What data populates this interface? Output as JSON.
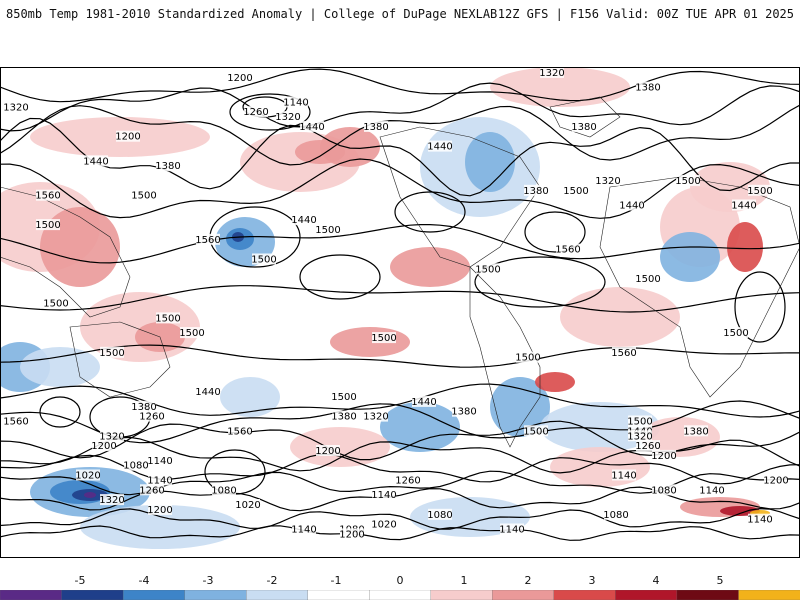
{
  "header": {
    "title": "850mb Temp 1981-2010 Standardized Anomaly | College of DuPage NEXLAB",
    "valid": "12Z GFS | F156 Valid: 00Z TUE APR 01 2025"
  },
  "colors": {
    "neg5": "#5a2a86",
    "neg4": "#1f3f8a",
    "neg3": "#3d84c8",
    "neg2": "#7fb2e0",
    "neg1": "#c9ddf2",
    "zero": "#ffffff",
    "pos1": "#f6cccc",
    "pos2": "#ea9999",
    "pos3": "#d94a4a",
    "pos4": "#b0162a",
    "pos5": "#6e0a14",
    "pos6": "#f2b21a",
    "contour": "#000000",
    "coast": "#222222"
  },
  "colorbar": {
    "ticks": [
      "-5",
      "-4",
      "-3",
      "-2",
      "-1",
      "0",
      "1",
      "2",
      "3",
      "4",
      "5"
    ]
  },
  "map": {
    "contour_labels": [
      {
        "text": "1200",
        "lon": 0.3,
        "lat": 0.02
      },
      {
        "text": "1320",
        "lon": 0.69,
        "lat": 0.01
      },
      {
        "text": "1380",
        "lon": 0.81,
        "lat": 0.04
      },
      {
        "text": "1320",
        "lon": 0.02,
        "lat": 0.08
      },
      {
        "text": "1140",
        "lon": 0.37,
        "lat": 0.07
      },
      {
        "text": "1260",
        "lon": 0.32,
        "lat": 0.09
      },
      {
        "text": "1320",
        "lon": 0.36,
        "lat": 0.1
      },
      {
        "text": "1440",
        "lon": 0.39,
        "lat": 0.12
      },
      {
        "text": "1380",
        "lon": 0.47,
        "lat": 0.12
      },
      {
        "text": "1380",
        "lon": 0.73,
        "lat": 0.12
      },
      {
        "text": "1200",
        "lon": 0.16,
        "lat": 0.14
      },
      {
        "text": "1440",
        "lon": 0.55,
        "lat": 0.16
      },
      {
        "text": "1440",
        "lon": 0.12,
        "lat": 0.19
      },
      {
        "text": "1380",
        "lon": 0.21,
        "lat": 0.2
      },
      {
        "text": "1320",
        "lon": 0.76,
        "lat": 0.23
      },
      {
        "text": "1380",
        "lon": 0.67,
        "lat": 0.25
      },
      {
        "text": "1500",
        "lon": 0.72,
        "lat": 0.25
      },
      {
        "text": "1500",
        "lon": 0.86,
        "lat": 0.23
      },
      {
        "text": "1500",
        "lon": 0.95,
        "lat": 0.25
      },
      {
        "text": "1440",
        "lon": 0.93,
        "lat": 0.28
      },
      {
        "text": "1560",
        "lon": 0.06,
        "lat": 0.26
      },
      {
        "text": "1500",
        "lon": 0.18,
        "lat": 0.26
      },
      {
        "text": "1440",
        "lon": 0.79,
        "lat": 0.28
      },
      {
        "text": "1500",
        "lon": 0.06,
        "lat": 0.32
      },
      {
        "text": "1440",
        "lon": 0.38,
        "lat": 0.31
      },
      {
        "text": "1500",
        "lon": 0.41,
        "lat": 0.33
      },
      {
        "text": "1560",
        "lon": 0.26,
        "lat": 0.35
      },
      {
        "text": "1560",
        "lon": 0.71,
        "lat": 0.37
      },
      {
        "text": "1500",
        "lon": 0.33,
        "lat": 0.39
      },
      {
        "text": "1500",
        "lon": 0.61,
        "lat": 0.41
      },
      {
        "text": "1500",
        "lon": 0.81,
        "lat": 0.43
      },
      {
        "text": "1500",
        "lon": 0.07,
        "lat": 0.48
      },
      {
        "text": "1500",
        "lon": 0.21,
        "lat": 0.51
      },
      {
        "text": "1500",
        "lon": 0.24,
        "lat": 0.54
      },
      {
        "text": "1500",
        "lon": 0.48,
        "lat": 0.55
      },
      {
        "text": "1500",
        "lon": 0.92,
        "lat": 0.54
      },
      {
        "text": "1500",
        "lon": 0.14,
        "lat": 0.58
      },
      {
        "text": "1500",
        "lon": 0.66,
        "lat": 0.59
      },
      {
        "text": "1560",
        "lon": 0.78,
        "lat": 0.58
      },
      {
        "text": "1500",
        "lon": 0.43,
        "lat": 0.67
      },
      {
        "text": "1440",
        "lon": 0.26,
        "lat": 0.66
      },
      {
        "text": "1440",
        "lon": 0.53,
        "lat": 0.68
      },
      {
        "text": "1380",
        "lon": 0.18,
        "lat": 0.69
      },
      {
        "text": "1380",
        "lon": 0.58,
        "lat": 0.7
      },
      {
        "text": "1260",
        "lon": 0.19,
        "lat": 0.71
      },
      {
        "text": "1380",
        "lon": 0.43,
        "lat": 0.71
      },
      {
        "text": "1320",
        "lon": 0.47,
        "lat": 0.71
      },
      {
        "text": "1560",
        "lon": 0.02,
        "lat": 0.72
      },
      {
        "text": "1560",
        "lon": 0.3,
        "lat": 0.74
      },
      {
        "text": "1500",
        "lon": 0.67,
        "lat": 0.74
      },
      {
        "text": "1500",
        "lon": 0.8,
        "lat": 0.72
      },
      {
        "text": "1440",
        "lon": 0.8,
        "lat": 0.74
      },
      {
        "text": "1380",
        "lon": 0.87,
        "lat": 0.74
      },
      {
        "text": "1320",
        "lon": 0.8,
        "lat": 0.75
      },
      {
        "text": "1320",
        "lon": 0.14,
        "lat": 0.75
      },
      {
        "text": "1200",
        "lon": 0.13,
        "lat": 0.77
      },
      {
        "text": "1260",
        "lon": 0.81,
        "lat": 0.77
      },
      {
        "text": "1200",
        "lon": 0.41,
        "lat": 0.78
      },
      {
        "text": "1200",
        "lon": 0.83,
        "lat": 0.79
      },
      {
        "text": "1140",
        "lon": 0.2,
        "lat": 0.8
      },
      {
        "text": "1080",
        "lon": 0.17,
        "lat": 0.81
      },
      {
        "text": "1020",
        "lon": 0.11,
        "lat": 0.83
      },
      {
        "text": "1140",
        "lon": 0.78,
        "lat": 0.83
      },
      {
        "text": "1260",
        "lon": 0.51,
        "lat": 0.84
      },
      {
        "text": "1200",
        "lon": 0.97,
        "lat": 0.84
      },
      {
        "text": "1140",
        "lon": 0.2,
        "lat": 0.84
      },
      {
        "text": "1080",
        "lon": 0.83,
        "lat": 0.86
      },
      {
        "text": "1140",
        "lon": 0.89,
        "lat": 0.86
      },
      {
        "text": "1260",
        "lon": 0.19,
        "lat": 0.86
      },
      {
        "text": "1080",
        "lon": 0.28,
        "lat": 0.86
      },
      {
        "text": "1140",
        "lon": 0.48,
        "lat": 0.87
      },
      {
        "text": "1320",
        "lon": 0.14,
        "lat": 0.88
      },
      {
        "text": "1020",
        "lon": 0.31,
        "lat": 0.89
      },
      {
        "text": "1200",
        "lon": 0.2,
        "lat": 0.9
      },
      {
        "text": "1080",
        "lon": 0.55,
        "lat": 0.91
      },
      {
        "text": "1080",
        "lon": 0.77,
        "lat": 0.91
      },
      {
        "text": "1140",
        "lon": 0.95,
        "lat": 0.92
      },
      {
        "text": "1140",
        "lon": 0.38,
        "lat": 0.94
      },
      {
        "text": "1080",
        "lon": 0.44,
        "lat": 0.94
      },
      {
        "text": "1020",
        "lon": 0.48,
        "lat": 0.93
      },
      {
        "text": "1140",
        "lon": 0.64,
        "lat": 0.94
      },
      {
        "text": "1200",
        "lon": 0.44,
        "lat": 0.95
      }
    ]
  }
}
